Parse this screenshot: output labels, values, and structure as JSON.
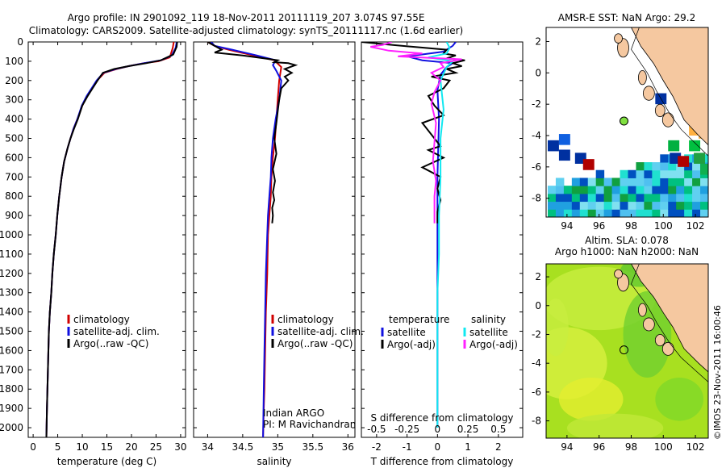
{
  "title_line1": "Argo profile: IN 2901092_119 18-Nov-2011 20111119_207 3.074S 97.55E",
  "title_line2": "Climatology: CARS2009. Satellite-adjusted climatology: synTS_20111117.nc (1.6d earlier)",
  "side_text": "©IMOS 23-Nov-2011 16:00:46",
  "colors": {
    "climatology": "#d00000",
    "satellite": "#1010e0",
    "argo": "#000000",
    "salinity_sat": "#10e8f0",
    "salinity_argo": "#ff20ff",
    "land": "#f5c8a0"
  },
  "chart_data": [
    {
      "type": "line",
      "panel": "temperature",
      "xlabel": "temperature (deg C)",
      "xlim": [
        -1,
        31
      ],
      "xticks": [
        "0",
        "5",
        "10",
        "15",
        "20",
        "25",
        "30"
      ],
      "xtick_values": [
        0,
        5,
        10,
        15,
        20,
        25,
        30
      ],
      "ylim": [
        2050,
        0
      ],
      "yticks": [
        "0",
        "100",
        "200",
        "300",
        "400",
        "500",
        "600",
        "700",
        "800",
        "900",
        "1000",
        "1100",
        "1200",
        "1300",
        "1400",
        "1500",
        "1600",
        "1700",
        "1800",
        "1900",
        "2000"
      ],
      "ytick_values": [
        0,
        100,
        200,
        300,
        400,
        500,
        600,
        700,
        800,
        900,
        1000,
        1100,
        1200,
        1300,
        1400,
        1500,
        1600,
        1700,
        1800,
        1900,
        2000
      ],
      "legend": [
        "climatology",
        "satellite-adj. clim.",
        "Argo(..raw -QC)"
      ],
      "series": [
        {
          "name": "climatology",
          "color_key": "climatology",
          "x": [
            28.6,
            28.4,
            27.8,
            25.5,
            22.5,
            19.5,
            17.0,
            14.5,
            13.0,
            12.0,
            11.0,
            10.0,
            9.0,
            8.2,
            7.6,
            7.0,
            6.3,
            5.8,
            5.3,
            4.9,
            4.6,
            4.2,
            3.9,
            3.7,
            3.4,
            3.2,
            3.0,
            2.8,
            2.7
          ],
          "y": [
            0,
            30,
            80,
            100,
            110,
            125,
            140,
            160,
            200,
            240,
            280,
            330,
            400,
            450,
            500,
            550,
            620,
            700,
            800,
            900,
            1000,
            1100,
            1200,
            1300,
            1400,
            1500,
            1700,
            1900,
            2050
          ]
        },
        {
          "name": "satellite-adj. clim.",
          "color_key": "satellite",
          "x": [
            29.2,
            29.0,
            28.2,
            26.0,
            22.5,
            19.5,
            16.8,
            14.3,
            12.9,
            11.9,
            10.9,
            9.9,
            9.0,
            8.2,
            7.6,
            7.0,
            6.3,
            5.8,
            5.3,
            4.9,
            4.6,
            4.2,
            3.9,
            3.7,
            3.4,
            3.2,
            3.0,
            2.8,
            2.7
          ],
          "y": [
            0,
            30,
            70,
            95,
            110,
            125,
            140,
            160,
            200,
            240,
            280,
            330,
            400,
            450,
            500,
            550,
            620,
            700,
            800,
            900,
            1000,
            1100,
            1200,
            1300,
            1400,
            1500,
            1700,
            1900,
            2050
          ]
        },
        {
          "name": "Argo(..raw -QC)",
          "color_key": "argo",
          "x": [
            29.3,
            29.2,
            28.5,
            26.0,
            23.0,
            19.5,
            16.5,
            14.2,
            13.1,
            12.1,
            11.1,
            10.0,
            9.1,
            8.3,
            7.6,
            7.0,
            6.3,
            5.8,
            5.3,
            4.9,
            4.6,
            4.2,
            3.9,
            3.7,
            3.4,
            3.2,
            3.0,
            2.8,
            2.7
          ],
          "y": [
            0,
            25,
            65,
            95,
            110,
            125,
            140,
            160,
            200,
            240,
            280,
            330,
            400,
            450,
            500,
            550,
            620,
            700,
            800,
            900,
            1000,
            1100,
            1200,
            1300,
            1400,
            1500,
            1700,
            1900,
            2050
          ]
        }
      ]
    },
    {
      "type": "line",
      "panel": "salinity",
      "xlabel": "salinity",
      "xlim": [
        33.8,
        36.1
      ],
      "xticks": [
        "34",
        "34.5",
        "35",
        "35.5",
        "36"
      ],
      "xtick_values": [
        34,
        34.5,
        35,
        35.5,
        36
      ],
      "ylim": [
        2050,
        0
      ],
      "legend": [
        "climatology",
        "satellite-adj. clim.",
        "Argo(..raw -QC)"
      ],
      "annotation": [
        "Indian ARGO",
        "PI: M Ravichandran"
      ],
      "series": [
        {
          "name": "climatology",
          "color_key": "climatology",
          "x": [
            34.0,
            34.1,
            34.3,
            34.65,
            34.95,
            35.05,
            35.02,
            35.0,
            34.98,
            34.96,
            34.93,
            34.91,
            34.9,
            34.88,
            34.86,
            34.85,
            34.83,
            34.82,
            34.81,
            34.8,
            34.79
          ],
          "y": [
            0,
            20,
            40,
            70,
            95,
            130,
            200,
            300,
            400,
            500,
            600,
            700,
            800,
            900,
            1000,
            1200,
            1400,
            1600,
            1800,
            1900,
            2050
          ]
        },
        {
          "name": "satellite-adj. clim.",
          "color_key": "satellite",
          "x": [
            34.05,
            34.1,
            34.35,
            34.7,
            34.97,
            34.93,
            34.98,
            35.05,
            35.02,
            34.97,
            34.93,
            34.91,
            34.9,
            34.88,
            34.86,
            34.85,
            34.83,
            34.82,
            34.81,
            34.8,
            34.79
          ],
          "y": [
            0,
            20,
            40,
            70,
            95,
            120,
            150,
            200,
            300,
            400,
            500,
            600,
            700,
            800,
            900,
            1000,
            1200,
            1400,
            1600,
            1800,
            2050
          ]
        },
        {
          "name": "Argo(..raw -QC)",
          "color_key": "argo",
          "x": [
            34.0,
            34.2,
            34.1,
            34.5,
            34.8,
            35.0,
            34.95,
            35.15,
            35.25,
            35.1,
            35.2,
            35.1,
            35.15,
            35.05,
            35.02,
            35.0,
            34.98,
            34.95,
            34.98,
            34.93,
            34.96,
            34.93,
            34.95,
            34.92,
            34.93,
            34.92
          ],
          "y": [
            0,
            40,
            55,
            70,
            85,
            95,
            105,
            110,
            120,
            140,
            160,
            180,
            200,
            240,
            300,
            360,
            420,
            500,
            580,
            660,
            720,
            780,
            820,
            860,
            900,
            940
          ]
        }
      ]
    },
    {
      "type": "line",
      "panel": "difference",
      "xlabel": "T difference from climatology",
      "top_label": "S difference from climatology",
      "xlim": [
        -2.5,
        2.8
      ],
      "xticks": [
        "-2",
        "-1",
        "0",
        "1",
        "2"
      ],
      "xtick_values": [
        -2,
        -1,
        0,
        1,
        2
      ],
      "top_xticks": [
        "-0.5",
        "-0.25",
        "0",
        "0.25",
        "0.5"
      ],
      "top_xtick_positions": [
        -2,
        -1,
        0,
        1,
        2
      ],
      "ylim": [
        2050,
        0
      ],
      "legend_temperature_title": "temperature",
      "legend_salinity_title": "salinity",
      "legend_temperature": [
        "satellite",
        "Argo(-adj)"
      ],
      "legend_salinity": [
        "satellite",
        "Argo(-adj)"
      ],
      "series": [
        {
          "name": "satellite",
          "group": "temperature",
          "color_key": "satellite",
          "x": [
            0.6,
            0.5,
            0.2,
            -1.0,
            -0.5,
            0.5,
            0.3,
            0.1,
            0.0,
            0.05,
            0.0,
            0.0,
            0.0,
            0.0
          ],
          "y": [
            0,
            20,
            50,
            75,
            95,
            110,
            130,
            170,
            250,
            400,
            700,
            1000,
            1500,
            2000
          ]
        },
        {
          "name": "Argo(-adj)",
          "group": "temperature",
          "color_key": "argo",
          "x": [
            -2.5,
            -1.5,
            -0.8,
            0.3,
            0.2,
            0.6,
            0.3,
            0.9,
            0.5,
            0.8,
            0.3,
            0.6,
            -0.2,
            0.4,
            0.2,
            -0.3,
            -0.1,
            0.2,
            -0.5,
            -0.2,
            0.1,
            -0.3,
            0.2,
            -0.5,
            0.1,
            0.0,
            0.1,
            0.0,
            0.0
          ],
          "y": [
            0,
            15,
            25,
            40,
            60,
            70,
            85,
            95,
            110,
            125,
            140,
            160,
            180,
            200,
            240,
            280,
            330,
            380,
            420,
            480,
            540,
            560,
            600,
            650,
            700,
            760,
            820,
            880,
            940
          ]
        },
        {
          "name": "satellite",
          "group": "salinity",
          "color_key": "salinity_sat",
          "x": [
            0.3,
            0.4,
            0.3,
            -0.3,
            0.5,
            0.3,
            0.1,
            0.2,
            0.1,
            0.1,
            0.05,
            0.05,
            0.0,
            0.0,
            0.0,
            0.0
          ],
          "y": [
            0,
            30,
            60,
            80,
            100,
            130,
            200,
            350,
            500,
            700,
            900,
            1100,
            1300,
            1500,
            1800,
            2000
          ]
        },
        {
          "name": "Argo(-adj)",
          "group": "salinity",
          "color_key": "salinity_argo",
          "x": [
            -1.5,
            -1.8,
            -2.2,
            -1.6,
            -0.5,
            -1.3,
            0.8,
            0.1,
            0.2,
            -0.2,
            0.1,
            -0.1,
            -0.2,
            -0.05,
            -0.1,
            -0.15,
            -0.05,
            -0.1,
            -0.1,
            -0.1
          ],
          "y": [
            0,
            15,
            25,
            45,
            60,
            75,
            90,
            110,
            130,
            160,
            200,
            260,
            320,
            420,
            520,
            620,
            720,
            800,
            860,
            940
          ]
        }
      ]
    },
    {
      "type": "heatmap",
      "panel": "sst_map",
      "title": "AMSR-E SST: NaN  Argo: 29.2",
      "xticks": [
        "94",
        "96",
        "98",
        "100",
        "102"
      ],
      "xtick_values": [
        94,
        96,
        98,
        100,
        102
      ],
      "yticks": [
        "2",
        "0",
        "-2",
        "-4",
        "-6",
        "-8"
      ],
      "ytick_values": [
        2,
        0,
        -2,
        -4,
        -6,
        -8
      ],
      "xlim": [
        92.7,
        102.8
      ],
      "ylim": [
        -9.2,
        2.9
      ],
      "argo_position": {
        "lon": 97.55,
        "lat": -3.074
      }
    },
    {
      "type": "heatmap",
      "panel": "sla_map",
      "title_line1": "Altim. SLA: 0.078",
      "title_line2": "Argo h1000: NaN h2000: NaN",
      "xticks": [
        "94",
        "96",
        "98",
        "100",
        "102"
      ],
      "xtick_values": [
        94,
        96,
        98,
        100,
        102
      ],
      "yticks": [
        "2",
        "0",
        "-2",
        "-4",
        "-6",
        "-8"
      ],
      "ytick_values": [
        2,
        0,
        -2,
        -4,
        -6,
        -8
      ],
      "xlim": [
        92.7,
        102.8
      ],
      "ylim": [
        -9.2,
        2.9
      ],
      "argo_position": {
        "lon": 97.55,
        "lat": -3.074
      }
    }
  ]
}
